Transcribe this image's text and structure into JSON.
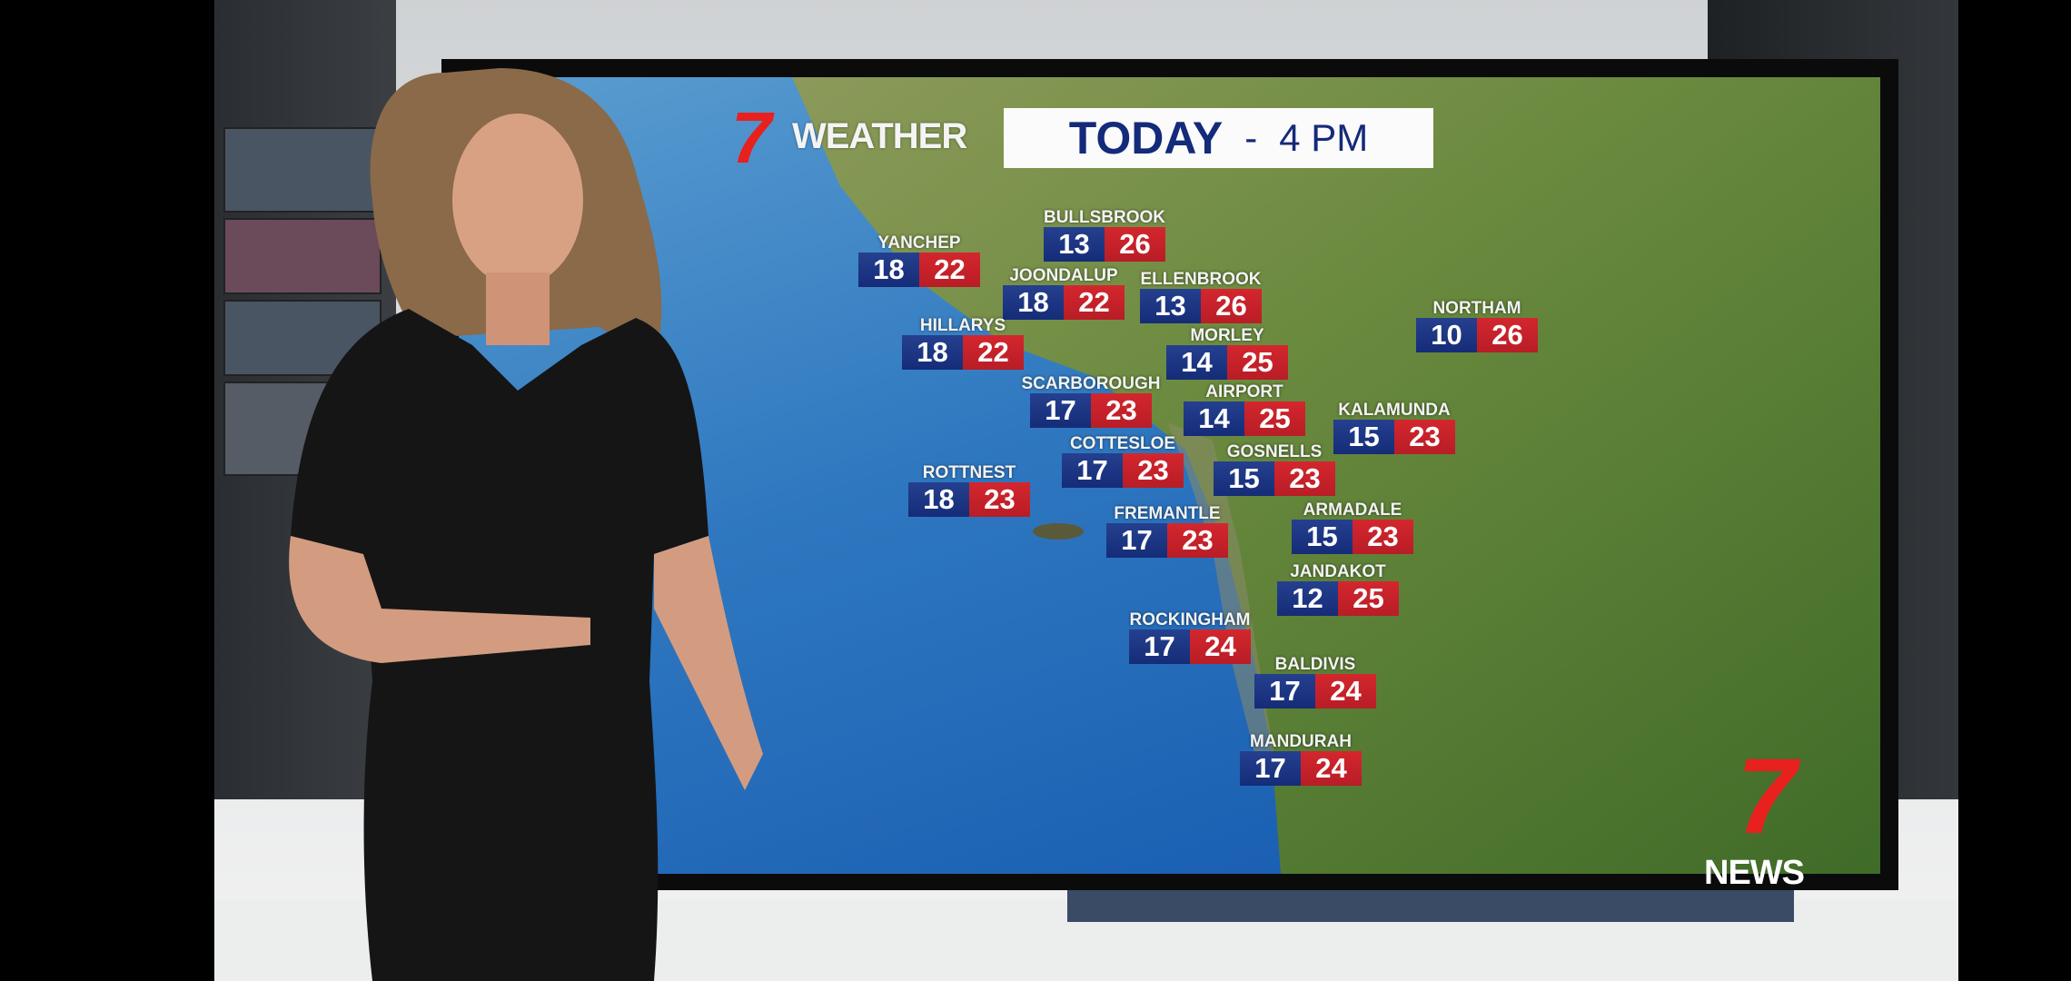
{
  "header": {
    "logo_mark": "7",
    "brand": "WEATHER",
    "title": "TODAY",
    "separator": "-",
    "time": "4 PM"
  },
  "footer_logo": {
    "mark": "7",
    "word": "NEWS"
  },
  "colors": {
    "min_temp_bg": "#1a3380",
    "max_temp_bg": "#c8222b",
    "logo_red": "#e8201e",
    "title_navy": "#142a7a"
  },
  "stations": [
    {
      "name": "BULLSBROOK",
      "min": "13",
      "max": "26"
    },
    {
      "name": "YANCHEP",
      "min": "18",
      "max": "22"
    },
    {
      "name": "JOONDALUP",
      "min": "18",
      "max": "22"
    },
    {
      "name": "ELLENBROOK",
      "min": "13",
      "max": "26"
    },
    {
      "name": "HILLARYS",
      "min": "18",
      "max": "22"
    },
    {
      "name": "MORLEY",
      "min": "14",
      "max": "25"
    },
    {
      "name": "NORTHAM",
      "min": "10",
      "max": "26"
    },
    {
      "name": "SCARBOROUGH",
      "min": "17",
      "max": "23"
    },
    {
      "name": "AIRPORT",
      "min": "14",
      "max": "25"
    },
    {
      "name": "KALAMUNDA",
      "min": "15",
      "max": "23"
    },
    {
      "name": "COTTESLOE",
      "min": "17",
      "max": "23"
    },
    {
      "name": "GOSNELLS",
      "min": "15",
      "max": "23"
    },
    {
      "name": "ROTTNEST",
      "min": "18",
      "max": "23"
    },
    {
      "name": "FREMANTLE",
      "min": "17",
      "max": "23"
    },
    {
      "name": "ARMADALE",
      "min": "15",
      "max": "23"
    },
    {
      "name": "JANDAKOT",
      "min": "12",
      "max": "25"
    },
    {
      "name": "ROCKINGHAM",
      "min": "17",
      "max": "24"
    },
    {
      "name": "BALDIVIS",
      "min": "17",
      "max": "24"
    },
    {
      "name": "MANDURAH",
      "min": "17",
      "max": "24"
    }
  ]
}
